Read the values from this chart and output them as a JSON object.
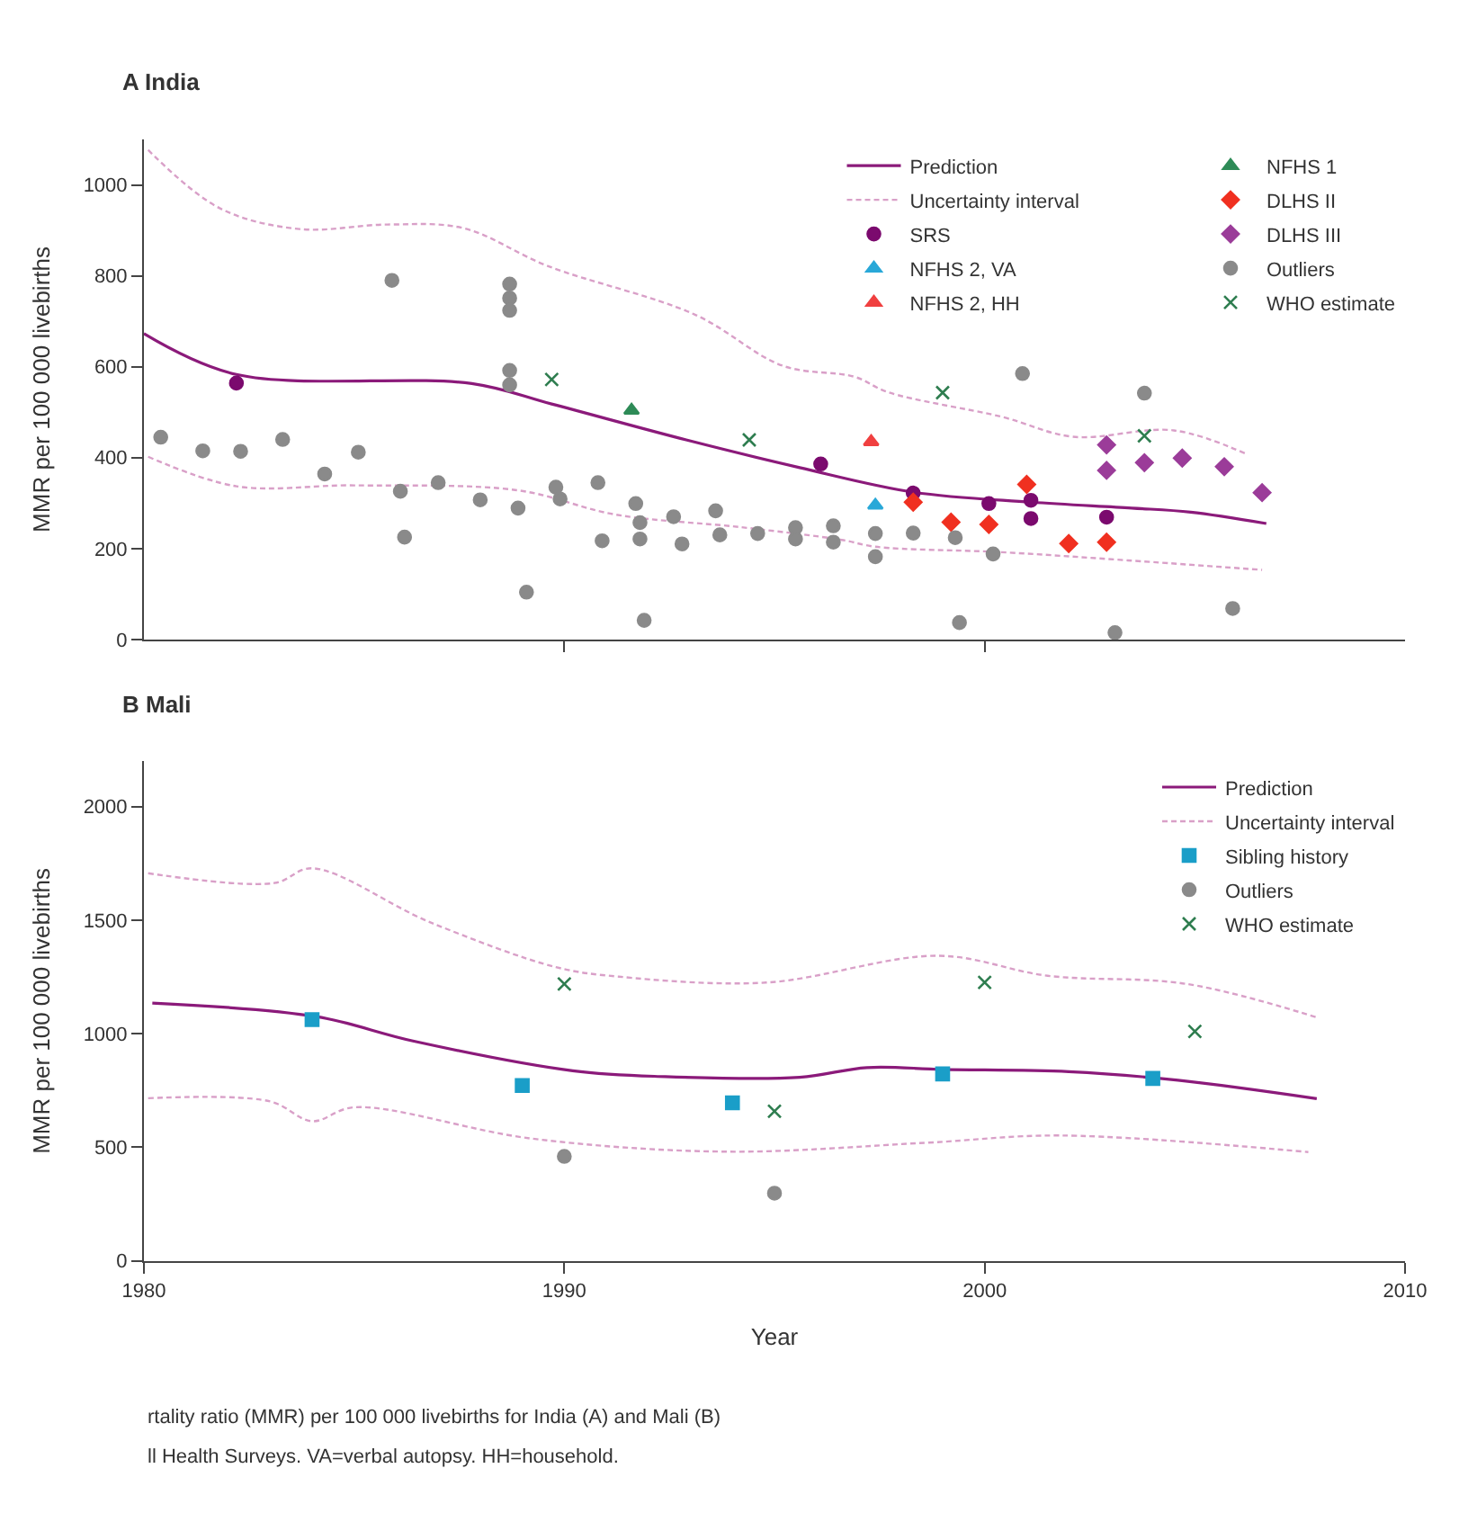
{
  "chart_data": [
    {
      "type": "scatter",
      "title": "A India",
      "ylabel": "MMR per 100 000 livebirths",
      "xlim": [
        1980,
        2010
      ],
      "ylim": [
        0,
        1100
      ],
      "xticks": [
        {
          "value": 1990,
          "label": null
        },
        {
          "value": 2000,
          "label": null
        }
      ],
      "yticks": [
        0,
        200,
        400,
        600,
        800,
        1000
      ],
      "tick_labels": "y",
      "legend": "top right",
      "series": [
        {
          "name": "Prediction",
          "type": "line",
          "color": "#8b1a7a",
          "line_style": "solid",
          "marker": "none",
          "x": [
            1980,
            1982.2,
            1987.8,
            1989.7,
            1992.9,
            1995.6,
            1998.3,
            2001.1,
            2003.5,
            2004.9,
            2006.7
          ],
          "values": [
            673,
            583,
            563,
            518,
            439,
            378,
            324,
            302,
            289,
            280,
            255
          ]
        },
        {
          "name": "Uncertainty interval",
          "type": "line",
          "color": "#d9a0c8",
          "line_style": "dashed",
          "marker": "none",
          "x": [
            1980.1,
            1981.8,
            1983.7,
            1985.8,
            1987.6,
            1989.6,
            1993.1,
            1995.2,
            1996.9,
            1997.7,
            2000.4,
            2002.1,
            2004.5,
            2006.2
          ],
          "values": [
            1077,
            949,
            903,
            913,
            905,
            822,
            715,
            602,
            578,
            544,
            490,
            446,
            460,
            409
          ]
        },
        {
          "type": "line",
          "color": "#d9a0c8",
          "line_style": "dashed",
          "marker": "none",
          "x": [
            1980.1,
            1982.2,
            1985.0,
            1988.9,
            1991.2,
            1994.2,
            1996.6,
            1997.4,
            2000.4,
            2003.4,
            2006.6
          ],
          "values": [
            402,
            337,
            339,
            328,
            275,
            247,
            219,
            204,
            192,
            174,
            153
          ]
        },
        {
          "name": "SRS",
          "color": "#7b0a6e",
          "marker": "circle",
          "x": [
            1982.2,
            1996.1,
            1998.3,
            2000.1,
            2001.1,
            2001.1,
            2002.9
          ],
          "values": [
            564,
            386,
            322,
            299,
            306,
            266,
            269
          ]
        },
        {
          "name": "NFHS 2, VA",
          "color": "#29a8d8",
          "marker": "triangle",
          "x": [
            1997.4
          ],
          "values": [
            295
          ]
        },
        {
          "name": "NFHS 2, HH",
          "color": "#f04040",
          "marker": "triangle",
          "x": [
            1997.3
          ],
          "values": [
            435
          ]
        },
        {
          "name": "NFHS 1",
          "color": "#2e8b57",
          "marker": "triangle",
          "x": [
            1991.6
          ],
          "values": [
            504
          ]
        },
        {
          "name": "DLHS II",
          "color": "#f03020",
          "marker": "diamond",
          "x": [
            1998.3,
            1999.2,
            2000.1,
            2001.0,
            2002.0,
            2002.9
          ],
          "values": [
            302,
            258,
            253,
            341,
            211,
            214
          ]
        },
        {
          "name": "DLHS III",
          "color": "#9b3c99",
          "marker": "diamond",
          "x": [
            2002.9,
            2002.9,
            2003.8,
            2004.7,
            2005.7,
            2006.6
          ],
          "values": [
            428,
            372,
            389,
            399,
            380,
            323
          ]
        },
        {
          "name": "Outliers",
          "color": "#8a8a8a",
          "marker": "circle",
          "x": [
            1980.4,
            1981.4,
            1982.3,
            1983.3,
            1984.3,
            1985.1,
            1985.9,
            1986.1,
            1986.2,
            1987.0,
            1988.0,
            1988.7,
            1988.7,
            1988.7,
            1988.7,
            1988.7,
            1988.9,
            1989.1,
            1989.8,
            1989.9,
            1990.8,
            1990.9,
            1991.7,
            1991.8,
            1991.8,
            1991.9,
            1992.6,
            1992.8,
            1993.6,
            1993.7,
            1994.6,
            1995.5,
            1995.5,
            1996.4,
            1996.4,
            1997.4,
            1997.4,
            1998.3,
            1999.3,
            1999.4,
            2000.2,
            2000.9,
            2003.1,
            2003.8,
            2005.9
          ],
          "values": [
            445,
            415,
            414,
            440,
            364,
            412,
            790,
            326,
            225,
            345,
            307,
            782,
            751,
            724,
            592,
            560,
            289,
            104,
            335,
            309,
            345,
            217,
            299,
            257,
            221,
            42,
            270,
            210,
            283,
            230,
            233,
            246,
            221,
            250,
            214,
            233,
            182,
            234,
            224,
            37,
            188,
            585,
            15,
            542,
            68
          ]
        },
        {
          "name": "WHO estimate",
          "color": "#2e7d4f",
          "marker": "cross",
          "x": [
            1989.7,
            1994.4,
            1999.0,
            2003.8
          ],
          "values": [
            572,
            439,
            543,
            448
          ]
        }
      ]
    },
    {
      "type": "scatter",
      "title": "B Mali",
      "xlabel": "Year",
      "ylabel": "MMR per 100 000 livebirths",
      "xlim": [
        1980,
        2010
      ],
      "ylim": [
        0,
        2200
      ],
      "xticks": [
        1980,
        1990,
        2000,
        2010
      ],
      "yticks": [
        0,
        500,
        1000,
        1500,
        2000
      ],
      "legend": "top right",
      "annotations": [
        "rtality ratio (MMR) per 100 000 livebirths for India (A) and Mali (B)",
        "ll Health Surveys. VA=verbal autopsy. HH=household."
      ],
      "series": [
        {
          "name": "Prediction",
          "type": "line",
          "color": "#8b1a7a",
          "line_style": "solid",
          "marker": "none",
          "x": [
            1980.2,
            1984.1,
            1986.4,
            1990.2,
            1992.4,
            1995.6,
            1997.2,
            1999.0,
            2002.0,
            2004.6,
            2007.9
          ],
          "values": [
            1135,
            1075,
            968,
            837,
            811,
            808,
            851,
            843,
            833,
            795,
            714
          ]
        },
        {
          "name": "Uncertainty interval",
          "type": "line",
          "color": "#d9a0c8",
          "line_style": "dashed",
          "marker": "none",
          "x": [
            1980.1,
            1983.1,
            1984.0,
            1986.8,
            1989.8,
            1991.3,
            1994.8,
            1998.9,
            2001.5,
            2004.8,
            2007.9
          ],
          "values": [
            1706,
            1663,
            1728,
            1491,
            1293,
            1251,
            1225,
            1343,
            1255,
            1219,
            1072
          ]
        },
        {
          "type": "line",
          "color": "#d9a0c8",
          "line_style": "dashed",
          "marker": "none",
          "x": [
            1980.1,
            1983.0,
            1984.0,
            1985.0,
            1989.2,
            1993.8,
            1998.6,
            2001.8,
            2007.7
          ],
          "values": [
            716,
            702,
            615,
            676,
            539,
            481,
            520,
            552,
            479
          ]
        },
        {
          "name": "Sibling history",
          "color": "#1a9ec8",
          "marker": "square",
          "x": [
            1984,
            1989,
            1994,
            1999,
            2004
          ],
          "values": [
            1062,
            772,
            696,
            823,
            803
          ]
        },
        {
          "name": "Outliers",
          "color": "#8a8a8a",
          "marker": "circle",
          "x": [
            1990,
            1995
          ],
          "values": [
            460,
            298
          ]
        },
        {
          "name": "WHO estimate",
          "color": "#2e7d4f",
          "marker": "cross",
          "x": [
            1990,
            1995,
            2000,
            2005
          ],
          "values": [
            1219,
            659,
            1226,
            1010
          ]
        }
      ]
    }
  ]
}
